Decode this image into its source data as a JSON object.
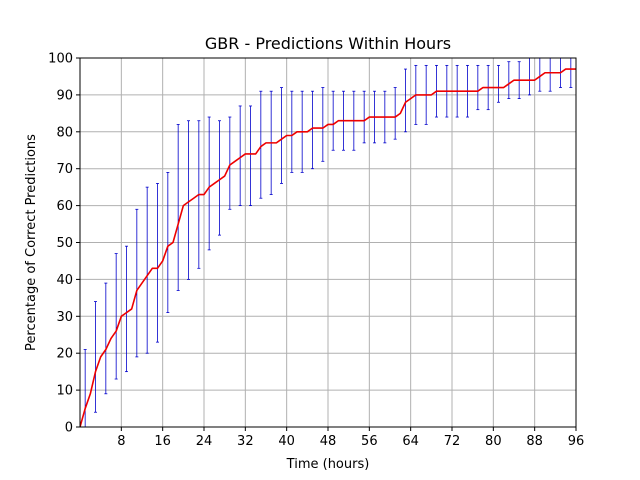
{
  "chart_data": {
    "type": "line",
    "title": "GBR - Predictions Within Hours",
    "xlabel": "Time (hours)",
    "ylabel": "Percentage of Correct Predictions",
    "xlim": [
      0,
      96
    ],
    "ylim": [
      0,
      100
    ],
    "xticks": [
      8,
      16,
      24,
      32,
      40,
      48,
      56,
      64,
      72,
      80,
      88,
      96
    ],
    "yticks": [
      0,
      10,
      20,
      30,
      40,
      50,
      60,
      70,
      80,
      90,
      100
    ],
    "grid": true,
    "series": [
      {
        "color": "#ee0000",
        "x": [
          0,
          1,
          2,
          3,
          4,
          5,
          6,
          7,
          8,
          9,
          10,
          11,
          12,
          13,
          14,
          15,
          16,
          17,
          18,
          19,
          20,
          21,
          22,
          23,
          24,
          25,
          26,
          27,
          28,
          29,
          30,
          31,
          32,
          33,
          34,
          35,
          36,
          37,
          38,
          39,
          40,
          41,
          42,
          43,
          44,
          45,
          46,
          47,
          48,
          49,
          50,
          51,
          52,
          53,
          54,
          55,
          56,
          57,
          58,
          59,
          60,
          61,
          62,
          63,
          64,
          65,
          66,
          67,
          68,
          69,
          70,
          71,
          72,
          73,
          74,
          75,
          76,
          77,
          78,
          79,
          80,
          81,
          82,
          83,
          84,
          85,
          86,
          87,
          88,
          89,
          90,
          91,
          92,
          93,
          94,
          95,
          96
        ],
        "y": [
          0,
          5,
          9,
          15,
          19,
          21,
          24,
          26,
          30,
          31,
          32,
          37,
          39,
          41,
          43,
          43,
          45,
          49,
          50,
          55,
          60,
          61,
          62,
          63,
          63,
          65,
          66,
          67,
          68,
          71,
          72,
          73,
          74,
          74,
          74,
          76,
          77,
          77,
          77,
          78,
          79,
          79,
          80,
          80,
          80,
          81,
          81,
          81,
          82,
          82,
          83,
          83,
          83,
          83,
          83,
          83,
          84,
          84,
          84,
          84,
          84,
          84,
          85,
          88,
          89,
          90,
          90,
          90,
          90,
          91,
          91,
          91,
          91,
          91,
          91,
          91,
          91,
          91,
          92,
          92,
          92,
          92,
          92,
          93,
          94,
          94,
          94,
          94,
          94,
          95,
          96,
          96,
          96,
          96,
          97,
          97,
          97
        ]
      }
    ],
    "errorbars": {
      "color": "#0000cc",
      "x": [
        1,
        3,
        5,
        7,
        9,
        11,
        13,
        15,
        17,
        19,
        21,
        23,
        25,
        27,
        29,
        31,
        33,
        35,
        37,
        39,
        41,
        43,
        45,
        47,
        49,
        51,
        53,
        55,
        57,
        59,
        61,
        63,
        65,
        67,
        69,
        71,
        73,
        75,
        77,
        79,
        81,
        83,
        85,
        87,
        89,
        91,
        93,
        95
      ],
      "lower": [
        -10,
        4,
        9,
        13,
        15,
        19,
        20,
        23,
        31,
        37,
        40,
        43,
        48,
        52,
        59,
        60,
        60,
        62,
        63,
        66,
        69,
        69,
        70,
        72,
        75,
        75,
        75,
        77,
        77,
        77,
        78,
        80,
        82,
        82,
        84,
        84,
        84,
        84,
        86,
        86,
        88,
        89,
        89,
        90,
        91,
        91,
        92,
        92
      ],
      "upper": [
        21,
        34,
        39,
        47,
        49,
        59,
        65,
        66,
        69,
        82,
        83,
        83,
        84,
        83,
        84,
        87,
        87,
        91,
        91,
        92,
        91,
        91,
        91,
        92,
        91,
        91,
        91,
        91,
        91,
        91,
        92,
        97,
        98,
        98,
        98,
        98,
        98,
        98,
        98,
        98,
        98,
        99,
        99,
        100,
        100,
        100,
        100,
        100
      ]
    }
  }
}
